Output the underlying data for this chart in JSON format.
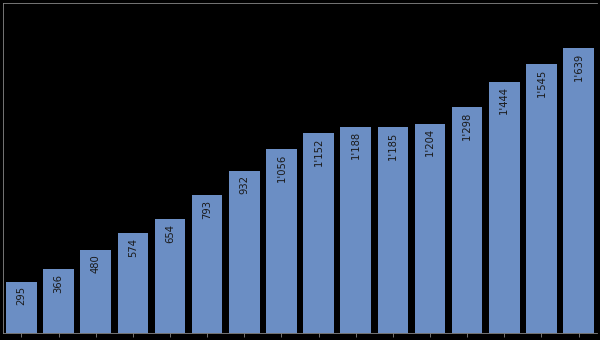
{
  "all_labels": [
    "295",
    "366",
    "480",
    "574",
    "654",
    "793",
    "932",
    "1'056",
    "1'152",
    "1'188",
    "1'185",
    "1'204",
    "1'298",
    "1'444",
    "1'545",
    "1'639"
  ],
  "all_values": [
    295,
    366,
    480,
    574,
    654,
    793,
    932,
    1056,
    1152,
    1188,
    1185,
    1204,
    1298,
    1444,
    1545,
    1639
  ],
  "n_bars": 16,
  "bar_color": "#6B8EC4",
  "figure_bg": "#000000",
  "axes_bg": "#000000",
  "grid_color": "#888888",
  "label_color": "#1a1a1a",
  "ylim": [
    0,
    1900
  ],
  "yticks": [
    0,
    200,
    400,
    600,
    800,
    1000,
    1200,
    1400,
    1600,
    1800
  ]
}
